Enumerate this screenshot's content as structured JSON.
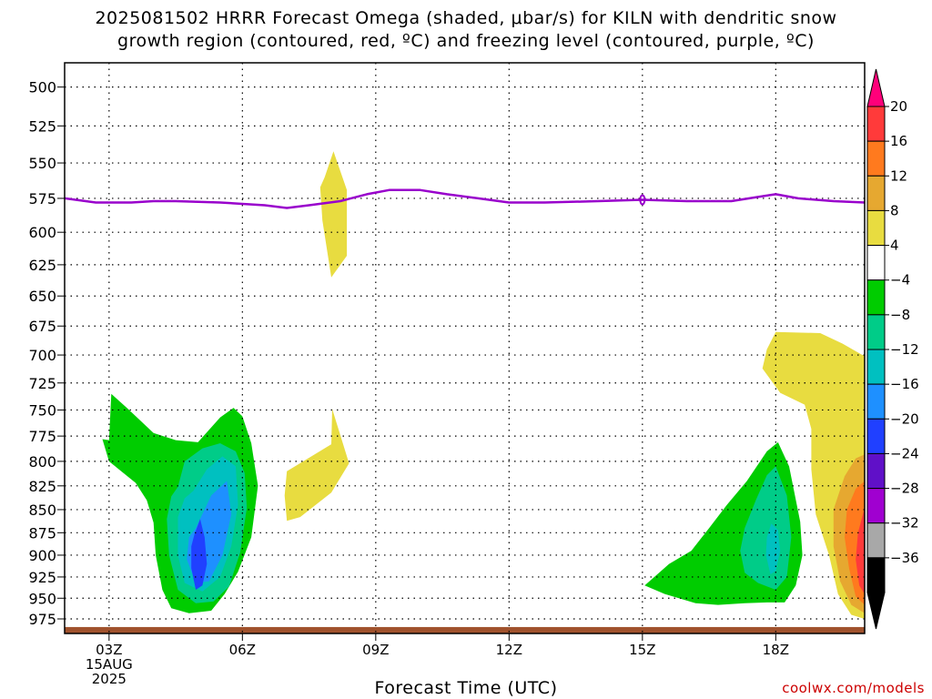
{
  "title": {
    "line1": "2025081502 HRRR Forecast Omega (shaded, μbar/s) for KILN with dendritic snow",
    "line2": "growth region (contoured, red, ºC) and freezing level (contoured, purple, ºC)"
  },
  "footer": {
    "xlabel": "Forecast Time (UTC)",
    "credit": "coolwx.com/models"
  },
  "chart_data": {
    "type": "contour",
    "y_axis": {
      "label": "",
      "ticks": [
        500,
        525,
        550,
        575,
        600,
        625,
        650,
        675,
        700,
        725,
        750,
        775,
        800,
        825,
        850,
        875,
        900,
        925,
        950,
        975
      ],
      "range": [
        485,
        993
      ],
      "inverted": true,
      "scale": "log-pressure"
    },
    "x_axis": {
      "label": "Forecast Time (UTC)",
      "ticks": [
        {
          "hour": 3,
          "label": "03Z",
          "sub": [
            "15AUG",
            "2025"
          ]
        },
        {
          "hour": 6,
          "label": "06Z"
        },
        {
          "hour": 9,
          "label": "09Z"
        },
        {
          "hour": 12,
          "label": "12Z"
        },
        {
          "hour": 15,
          "label": "15Z"
        },
        {
          "hour": 18,
          "label": "18Z"
        }
      ],
      "range": [
        2,
        20
      ]
    },
    "grid": true,
    "colorbar": {
      "levels": [
        {
          "label": "20",
          "color": "#ff3a3a"
        },
        {
          "label": "16",
          "color": "#ff7a1e"
        },
        {
          "label": "12",
          "color": "#e6a830"
        },
        {
          "label": "8",
          "color": "#e8dc40"
        },
        {
          "label": "4",
          "color": "#ffffff"
        },
        {
          "label": "−4",
          "color": "#00cc00"
        },
        {
          "label": "−8",
          "color": "#00cc88"
        },
        {
          "label": "−12",
          "color": "#00c0c0"
        },
        {
          "label": "−16",
          "color": "#1e90ff"
        },
        {
          "label": "−20",
          "color": "#2040ff"
        },
        {
          "label": "−24",
          "color": "#6010c8"
        },
        {
          "label": "−28",
          "color": "#a000d0"
        },
        {
          "label": "−32",
          "color": "#a8a8a8"
        },
        {
          "label": "−36",
          "color": "#000000"
        }
      ],
      "top_arrow_color": "#ff007a",
      "bottom_arrow_color": "#000000"
    },
    "freezing_level": {
      "color": "#9900cc",
      "points": [
        [
          2.0,
          575
        ],
        [
          2.7,
          578
        ],
        [
          3.5,
          578
        ],
        [
          4.0,
          577
        ],
        [
          4.5,
          577
        ],
        [
          5.5,
          578
        ],
        [
          6.5,
          580
        ],
        [
          7.0,
          582
        ],
        [
          7.5,
          580
        ],
        [
          8.2,
          577
        ],
        [
          8.8,
          572
        ],
        [
          9.3,
          569
        ],
        [
          10.0,
          569
        ],
        [
          10.6,
          572
        ],
        [
          11.3,
          575
        ],
        [
          12.0,
          578
        ],
        [
          12.8,
          578
        ],
        [
          14.0,
          577
        ],
        [
          15.0,
          576
        ],
        [
          16.0,
          577
        ],
        [
          17.0,
          577
        ],
        [
          17.6,
          574
        ],
        [
          18.0,
          572
        ],
        [
          18.5,
          575
        ],
        [
          19.3,
          577
        ],
        [
          20.0,
          578
        ]
      ]
    },
    "shaded_regions": [
      {
        "fill": "#e8dc40",
        "points": [
          [
            7.85,
            560
          ],
          [
            8.05,
            542
          ],
          [
            8.35,
            569
          ],
          [
            8.35,
            618
          ],
          [
            8.0,
            635
          ],
          [
            7.8,
            591
          ],
          [
            7.75,
            567
          ]
        ]
      },
      {
        "fill": "#e8dc40",
        "points": [
          [
            7.0,
            810
          ],
          [
            8.0,
            783
          ],
          [
            8.02,
            749
          ],
          [
            8.4,
            802
          ],
          [
            8.0,
            832
          ],
          [
            7.3,
            858
          ],
          [
            7.0,
            862
          ],
          [
            6.95,
            835
          ]
        ]
      },
      {
        "fill": "#00cc00",
        "points": [
          [
            3.0,
            779
          ],
          [
            3.05,
            735
          ],
          [
            3.4,
            748
          ],
          [
            4.0,
            772
          ],
          [
            4.5,
            779
          ],
          [
            5.0,
            781
          ],
          [
            5.5,
            757
          ],
          [
            5.8,
            748
          ],
          [
            6.0,
            756
          ],
          [
            6.2,
            782
          ],
          [
            6.35,
            825
          ],
          [
            6.2,
            880
          ],
          [
            5.9,
            919
          ],
          [
            5.6,
            945
          ],
          [
            5.3,
            965
          ],
          [
            4.8,
            968
          ],
          [
            4.4,
            962
          ],
          [
            4.2,
            940
          ],
          [
            4.05,
            900
          ],
          [
            4.0,
            864
          ],
          [
            3.85,
            840
          ],
          [
            3.6,
            822
          ],
          [
            3.0,
            800
          ],
          [
            2.85,
            778
          ]
        ]
      },
      {
        "fill": "#00cc88",
        "points": [
          [
            4.55,
            826
          ],
          [
            4.7,
            800
          ],
          [
            5.1,
            787
          ],
          [
            5.5,
            782
          ],
          [
            5.85,
            790
          ],
          [
            6.05,
            812
          ],
          [
            6.1,
            848
          ],
          [
            5.95,
            897
          ],
          [
            5.7,
            936
          ],
          [
            5.35,
            954
          ],
          [
            4.95,
            956
          ],
          [
            4.55,
            940
          ],
          [
            4.35,
            900
          ],
          [
            4.3,
            860
          ],
          [
            4.4,
            836
          ]
        ]
      },
      {
        "fill": "#00c0c0",
        "points": [
          [
            4.9,
            830
          ],
          [
            5.2,
            808
          ],
          [
            5.55,
            795
          ],
          [
            5.85,
            805
          ],
          [
            5.9,
            845
          ],
          [
            5.75,
            890
          ],
          [
            5.5,
            925
          ],
          [
            5.1,
            942
          ],
          [
            4.7,
            932
          ],
          [
            4.55,
            900
          ],
          [
            4.55,
            858
          ],
          [
            4.7,
            838
          ]
        ]
      },
      {
        "fill": "#1e90ff",
        "points": [
          [
            4.95,
            870
          ],
          [
            5.3,
            835
          ],
          [
            5.65,
            820
          ],
          [
            5.75,
            855
          ],
          [
            5.55,
            900
          ],
          [
            5.25,
            930
          ],
          [
            4.95,
            932
          ],
          [
            4.75,
            905
          ],
          [
            4.8,
            880
          ]
        ]
      },
      {
        "fill": "#2040ff",
        "points": [
          [
            4.92,
            877
          ],
          [
            5.05,
            860
          ],
          [
            5.15,
            880
          ],
          [
            5.2,
            910
          ],
          [
            5.1,
            935
          ],
          [
            4.95,
            940
          ],
          [
            4.85,
            915
          ],
          [
            4.85,
            890
          ]
        ]
      },
      {
        "fill": "#e8dc40",
        "points": [
          [
            17.8,
            695
          ],
          [
            18.0,
            680
          ],
          [
            19.0,
            681
          ],
          [
            19.5,
            690
          ],
          [
            19.95,
            700
          ],
          [
            20.0,
            700
          ],
          [
            20.0,
            975
          ],
          [
            19.7,
            970
          ],
          [
            19.4,
            945
          ],
          [
            19.2,
            900
          ],
          [
            18.9,
            855
          ],
          [
            18.8,
            808
          ],
          [
            18.8,
            768
          ],
          [
            18.65,
            745
          ],
          [
            18.1,
            734
          ],
          [
            17.7,
            712
          ]
        ]
      },
      {
        "fill": "#e6a830",
        "points": [
          [
            19.3,
            850
          ],
          [
            19.55,
            815
          ],
          [
            19.8,
            797
          ],
          [
            20.0,
            793
          ],
          [
            20.0,
            968
          ],
          [
            19.7,
            958
          ],
          [
            19.45,
            930
          ],
          [
            19.3,
            890
          ]
        ]
      },
      {
        "fill": "#ff7a1e",
        "points": [
          [
            19.6,
            850
          ],
          [
            19.8,
            828
          ],
          [
            20.0,
            820
          ],
          [
            20.0,
            958
          ],
          [
            19.8,
            948
          ],
          [
            19.65,
            915
          ],
          [
            19.55,
            880
          ]
        ]
      },
      {
        "fill": "#ff3a3a",
        "points": [
          [
            19.85,
            875
          ],
          [
            20.0,
            848
          ],
          [
            20.0,
            945
          ],
          [
            19.88,
            935
          ],
          [
            19.8,
            905
          ]
        ]
      },
      {
        "fill": "#00cc00",
        "points": [
          [
            15.05,
            935
          ],
          [
            15.6,
            910
          ],
          [
            16.1,
            895
          ],
          [
            16.5,
            870
          ],
          [
            16.9,
            845
          ],
          [
            17.35,
            820
          ],
          [
            17.8,
            790
          ],
          [
            18.05,
            781
          ],
          [
            18.3,
            805
          ],
          [
            18.55,
            863
          ],
          [
            18.6,
            900
          ],
          [
            18.45,
            935
          ],
          [
            18.2,
            955
          ],
          [
            17.8,
            955
          ],
          [
            17.3,
            956
          ],
          [
            16.7,
            958
          ],
          [
            16.2,
            956
          ],
          [
            15.5,
            945
          ]
        ]
      },
      {
        "fill": "#00cc88",
        "points": [
          [
            17.3,
            870
          ],
          [
            17.55,
            840
          ],
          [
            17.8,
            814
          ],
          [
            18.0,
            805
          ],
          [
            18.25,
            835
          ],
          [
            18.35,
            880
          ],
          [
            18.25,
            925
          ],
          [
            18.0,
            940
          ],
          [
            17.6,
            932
          ],
          [
            17.3,
            920
          ],
          [
            17.2,
            895
          ]
        ]
      },
      {
        "fill": "#00c0c0",
        "points": [
          [
            17.8,
            880
          ],
          [
            17.9,
            865
          ],
          [
            18.05,
            872
          ],
          [
            18.1,
            895
          ],
          [
            18.0,
            918
          ],
          [
            17.88,
            922
          ],
          [
            17.78,
            900
          ]
        ]
      }
    ],
    "ground": {
      "fill": "#a0522d",
      "pressure": 985
    }
  }
}
